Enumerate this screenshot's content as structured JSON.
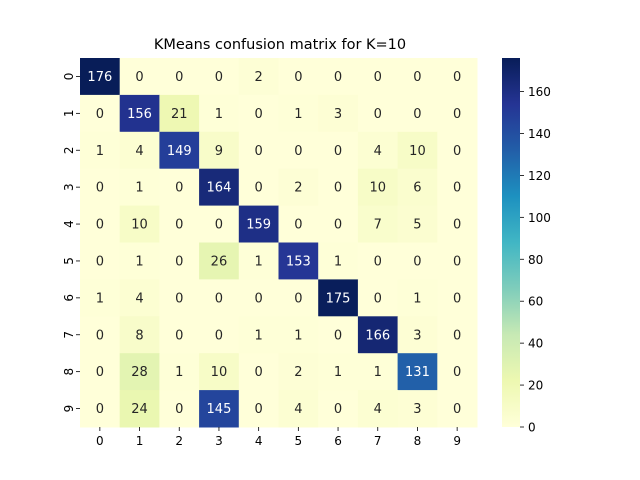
{
  "chart_data": {
    "type": "heatmap",
    "title": "KMeans confusion matrix for K=10",
    "xlabel": "",
    "ylabel": "",
    "x_categories": [
      "0",
      "1",
      "2",
      "3",
      "4",
      "5",
      "6",
      "7",
      "8",
      "9"
    ],
    "y_categories": [
      "0",
      "1",
      "2",
      "3",
      "4",
      "5",
      "6",
      "7",
      "8",
      "9"
    ],
    "values": [
      [
        176,
        0,
        0,
        0,
        2,
        0,
        0,
        0,
        0,
        0
      ],
      [
        0,
        156,
        21,
        1,
        0,
        1,
        3,
        0,
        0,
        0
      ],
      [
        1,
        4,
        149,
        9,
        0,
        0,
        0,
        4,
        10,
        0
      ],
      [
        0,
        1,
        0,
        164,
        0,
        2,
        0,
        10,
        6,
        0
      ],
      [
        0,
        10,
        0,
        0,
        159,
        0,
        0,
        7,
        5,
        0
      ],
      [
        0,
        1,
        0,
        26,
        1,
        153,
        1,
        0,
        0,
        0
      ],
      [
        1,
        4,
        0,
        0,
        0,
        0,
        175,
        0,
        1,
        0
      ],
      [
        0,
        8,
        0,
        0,
        1,
        1,
        0,
        166,
        3,
        0
      ],
      [
        0,
        28,
        1,
        10,
        0,
        2,
        1,
        1,
        131,
        0
      ],
      [
        0,
        24,
        0,
        145,
        0,
        4,
        0,
        4,
        3,
        0
      ]
    ],
    "colorbar": {
      "colormap": "YlGnBu",
      "min": 0,
      "max": 176,
      "ticks": [
        0,
        20,
        40,
        60,
        80,
        100,
        120,
        140,
        160
      ]
    },
    "annotate": true
  }
}
